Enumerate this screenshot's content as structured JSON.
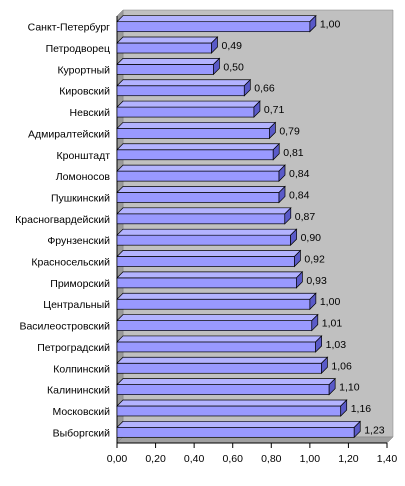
{
  "chart_data": {
    "type": "bar",
    "orientation": "horizontal",
    "style": "3d",
    "categories": [
      "Санкт-Петербург",
      "Петродворец",
      "Курортный",
      "Кировский",
      "Невский",
      "Адмиралтейский",
      "Кронштадт",
      "Ломоносов",
      "Пушкинский",
      "Красногвардейский",
      "Фрунзенский",
      "Красносельский",
      "Приморский",
      "Центральный",
      "Василеостровский",
      "Петроградский",
      "Колпинский",
      "Калининский",
      "Московский",
      "Выборгский"
    ],
    "values": [
      1.0,
      0.49,
      0.5,
      0.66,
      0.71,
      0.79,
      0.81,
      0.84,
      0.84,
      0.87,
      0.9,
      0.92,
      0.93,
      1.0,
      1.01,
      1.03,
      1.06,
      1.1,
      1.16,
      1.23
    ],
    "value_labels": [
      "1,00",
      "0,49",
      "0,50",
      "0,66",
      "0,71",
      "0,79",
      "0,81",
      "0,84",
      "0,84",
      "0,87",
      "0,90",
      "0,92",
      "0,93",
      "1,00",
      "1,01",
      "1,03",
      "1,06",
      "1,10",
      "1,16",
      "1,23"
    ],
    "xlim": [
      0,
      1.4
    ],
    "x_ticks": [
      0,
      0.2,
      0.4,
      0.6,
      0.8,
      1.0,
      1.2,
      1.4
    ],
    "x_tick_labels": [
      "0,00",
      "0,20",
      "0,40",
      "0,60",
      "0,80",
      "1,00",
      "1,20",
      "1,40"
    ],
    "title": "",
    "xlabel": "",
    "ylabel": "",
    "grid": false,
    "legend": "none",
    "colors": {
      "bar_front": "#9999ff",
      "bar_top": "#b3b3ff",
      "bar_side": "#5a5ac8",
      "bar_outline": "#000000",
      "wall": "#c0c0c0",
      "floor": "#a0a0a0"
    }
  }
}
